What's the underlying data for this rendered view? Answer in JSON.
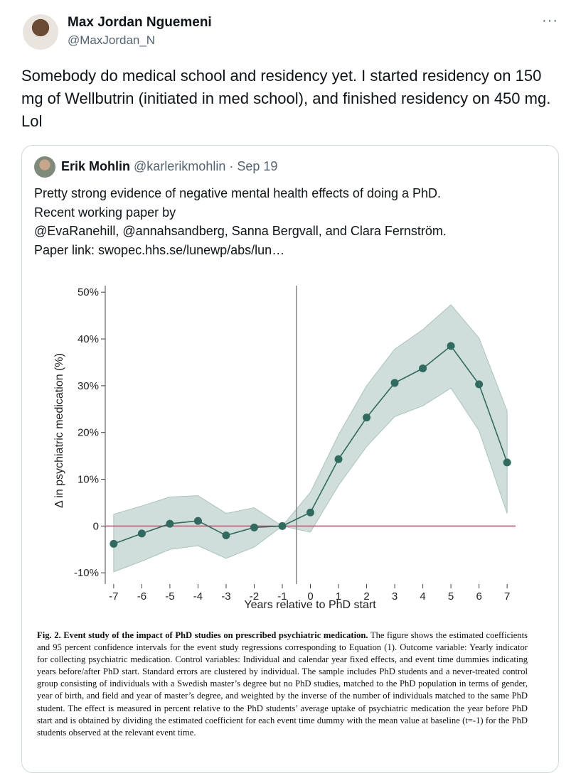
{
  "tweet": {
    "name": "Max Jordan Nguemeni",
    "handle": "@MaxJordan_N",
    "more": "···",
    "text": "Somebody do medical school and residency yet. I started residency on 150 mg of Wellbutrin (initiated in med school), and finished residency on 450 mg. Lol"
  },
  "quote": {
    "name": "Erik Mohlin",
    "handle": "@karlerikmohlin",
    "date": "· Sep 19",
    "lines": [
      "Pretty strong evidence of negative mental health effects of doing a PhD.",
      "Recent working paper by",
      "@EvaRanehill, @annahsandberg, Sanna Bergvall, and  Clara Fernström.",
      "Paper link:  swopec.hhs.se/lunewp/abs/lun…"
    ]
  },
  "chart_data": {
    "type": "line",
    "x": [
      -7,
      -6,
      -5,
      -4,
      -3,
      -2,
      -1,
      0,
      1,
      2,
      3,
      4,
      5,
      6,
      7
    ],
    "series": [
      {
        "color": "#2f6b5e",
        "band_color": "#cfdeda",
        "values": [
          -3.8,
          -1.6,
          0.5,
          1.1,
          -2.0,
          -0.3,
          0,
          2.9,
          14.3,
          23.2,
          30.6,
          33.7,
          38.5,
          30.3,
          13.6
        ],
        "lower": [
          -9.8,
          -7.5,
          -5.0,
          -4.2,
          -6.9,
          -4.5,
          0,
          -1.3,
          8.7,
          17.0,
          23.4,
          25.7,
          29.5,
          20.4,
          2.7
        ],
        "upper": [
          2.5,
          4.3,
          6.2,
          6.5,
          2.7,
          3.9,
          0,
          7.2,
          19.5,
          30.0,
          37.8,
          42.0,
          47.3,
          40.2,
          24.6
        ]
      }
    ],
    "xlabel": "Years relative to PhD start",
    "ylabel": "Δ in psychiatric medication (%)",
    "xlim": [
      -7.3,
      7.3
    ],
    "ylim": [
      -12.4,
      51.4
    ],
    "xticks": [
      -7,
      -6,
      -5,
      -4,
      -3,
      -2,
      -1,
      0,
      1,
      2,
      3,
      4,
      5,
      6,
      7
    ],
    "yticks": [
      {
        "value": -10,
        "label": "-10%"
      },
      0,
      {
        "value": 10,
        "label": "10%"
      },
      {
        "value": 20,
        "label": "20%"
      },
      {
        "value": 30,
        "label": "30%"
      },
      {
        "value": 40,
        "label": "40%"
      },
      {
        "value": 50,
        "label": "50%"
      }
    ],
    "hline": 0,
    "hline_color": "#c9506a",
    "vline": -0.5,
    "vline_color": "#777777",
    "caption_title": "Fig. 2. Event study of the impact of PhD studies on prescribed psychiatric medication.",
    "caption": "The figure shows the estimated coefficients and 95 percent confidence intervals for the event study regressions corresponding to Equation (1). Outcome variable: Yearly indicator for collecting psychiatric medication. Control variables: Individual and calendar year fixed effects, and event time dummies indicating years before/after PhD start. Standard errors are clustered by individual. The sample includes PhD students and a never-treated control group consisting of individuals with a Swedish master’s degree but no PhD studies, matched to the PhD population in terms of gender, year of birth, and field and year of master’s degree, and weighted by the inverse of the number of individuals matched to the same PhD student. The effect is measured in percent relative to the PhD students’ average uptake of psychiatric medication the year before PhD start and is obtained by dividing the estimated coefficient for each event time dummy with the mean value at baseline (t=-1) for the PhD students observed at the relevant event time."
  }
}
